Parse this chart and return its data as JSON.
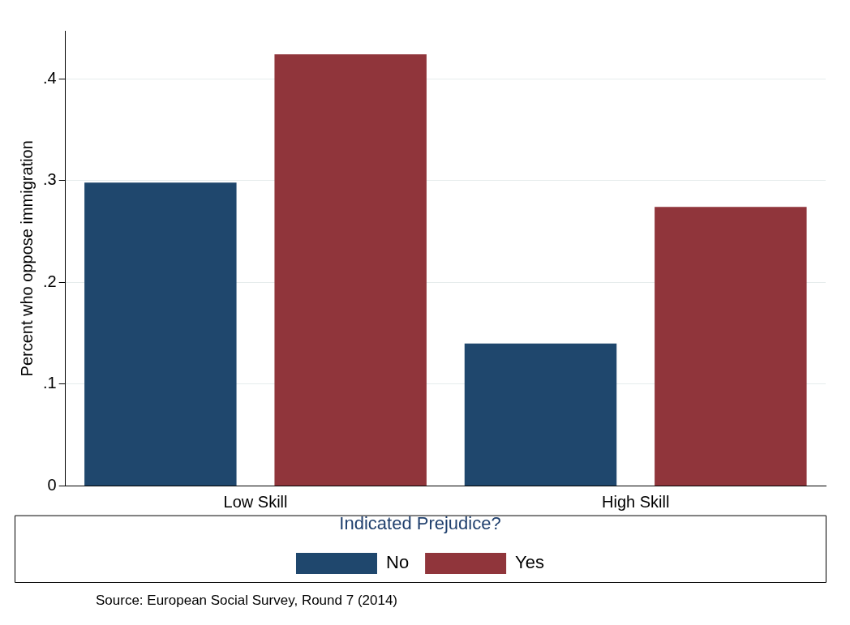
{
  "chart_data": {
    "type": "bar",
    "categories": [
      "Low Skill",
      "High Skill"
    ],
    "series": [
      {
        "name": "No",
        "color": "#1f476d",
        "values": [
          0.298,
          0.14
        ]
      },
      {
        "name": "Yes",
        "color": "#90353b",
        "values": [
          0.424,
          0.274
        ]
      }
    ],
    "ylabel": "Percent who oppose immigration",
    "legend_title": "Indicated Prejudice?",
    "legend": "bottom",
    "grid": "y",
    "ylim": [
      0,
      0.447
    ],
    "yticks": [
      0,
      {
        "value": 0.1,
        "label": ".1"
      },
      {
        "value": 0.2,
        "label": ".2"
      },
      {
        "value": 0.3,
        "label": ".3"
      },
      {
        "value": 0.4,
        "label": ".4"
      }
    ],
    "annotations": [
      "Source: European Social Survey, Round 7 (2014)"
    ]
  }
}
